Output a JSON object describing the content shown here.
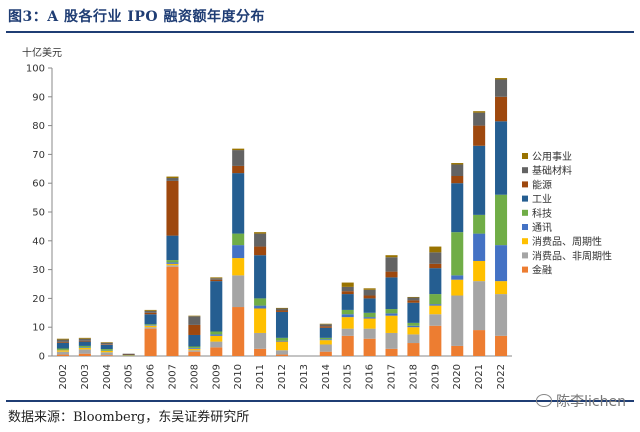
{
  "header": {
    "title": "图3：A 股各行业 IPO 融资额年度分布"
  },
  "footer": {
    "source": "数据来源：Bloomberg，东吴证券研究所",
    "watermark": "陈李lichen"
  },
  "chart_data": {
    "type": "bar",
    "stacked": true,
    "unit_label": "十亿美元",
    "ylim": [
      0,
      100
    ],
    "yticks": [
      0,
      10,
      20,
      30,
      40,
      50,
      60,
      70,
      80,
      90,
      100
    ],
    "grid": false,
    "legend_position": "right",
    "categories": [
      "2002",
      "2003",
      "2004",
      "2005",
      "2006",
      "2007",
      "2008",
      "2009",
      "2010",
      "2011",
      "2012",
      "2013",
      "2014",
      "2015",
      "2016",
      "2017",
      "2018",
      "2019",
      "2020",
      "2021",
      "2022"
    ],
    "series": [
      {
        "name": "金融",
        "color": "#ed7d31",
        "values": [
          0.5,
          0.8,
          0.3,
          0.0,
          9.5,
          31.0,
          1.5,
          3.0,
          17.0,
          2.5,
          0.5,
          0,
          1.5,
          7.0,
          6.0,
          2.5,
          4.5,
          10.5,
          3.5,
          9.0,
          7.0
        ]
      },
      {
        "name": "消费品、非周期性",
        "color": "#a5a5a5",
        "values": [
          1.0,
          1.5,
          1.0,
          0.1,
          0.5,
          0.5,
          0.5,
          2.0,
          11.0,
          5.5,
          1.5,
          0,
          2.5,
          2.5,
          3.5,
          5.5,
          3.0,
          4.0,
          17.5,
          17.0,
          14.5
        ]
      },
      {
        "name": "消费品、周期性",
        "color": "#ffc000",
        "values": [
          0.5,
          0.5,
          0.5,
          0.1,
          0.5,
          0.5,
          0.5,
          2.0,
          6.0,
          8.5,
          3.0,
          0,
          1.5,
          4.0,
          3.5,
          6.0,
          2.5,
          3.0,
          5.5,
          7.0,
          4.5
        ]
      },
      {
        "name": "通讯",
        "color": "#4472c4",
        "values": [
          0.1,
          0.2,
          0.1,
          0.0,
          0.2,
          0.5,
          0.3,
          0.5,
          4.5,
          1.0,
          0.3,
          0,
          0.3,
          1.0,
          0.5,
          0.8,
          0.5,
          0.5,
          1.5,
          9.5,
          12.5
        ]
      },
      {
        "name": "科技",
        "color": "#70ad47",
        "values": [
          0.5,
          0.5,
          0.5,
          0.1,
          0.3,
          0.8,
          0.5,
          1.0,
          4.0,
          2.5,
          1.0,
          0,
          0.5,
          1.5,
          1.5,
          1.5,
          1.0,
          3.5,
          15.0,
          6.5,
          17.5
        ]
      },
      {
        "name": "工业",
        "color": "#255e91",
        "values": [
          2.0,
          1.5,
          1.5,
          0.2,
          3.5,
          8.5,
          4.0,
          17.5,
          21.0,
          15.0,
          9.0,
          0,
          3.5,
          5.5,
          5.0,
          11.0,
          7.0,
          9.0,
          17.0,
          24.0,
          25.5
        ]
      },
      {
        "name": "能源",
        "color": "#9e480e",
        "values": [
          0.3,
          0.3,
          0.2,
          0.2,
          0.5,
          19.0,
          3.5,
          0.5,
          2.5,
          3.0,
          0.5,
          0,
          0.5,
          1.0,
          1.0,
          2.0,
          0.8,
          1.5,
          2.5,
          7.0,
          8.5
        ]
      },
      {
        "name": "基础材料",
        "color": "#636363",
        "values": [
          0.8,
          0.7,
          0.5,
          0.1,
          0.7,
          1.0,
          3.0,
          0.5,
          5.5,
          4.5,
          0.7,
          0,
          0.7,
          1.5,
          2.0,
          5.0,
          1.0,
          4.0,
          4.0,
          4.5,
          6.0
        ]
      },
      {
        "name": "公用事业",
        "color": "#997300",
        "values": [
          0.3,
          0.3,
          0.2,
          0.0,
          0.3,
          0.5,
          0.2,
          0.3,
          0.5,
          0.5,
          0.2,
          0,
          0.2,
          1.5,
          0.5,
          0.7,
          0.2,
          2.0,
          0.5,
          0.5,
          0.5
        ]
      }
    ]
  }
}
